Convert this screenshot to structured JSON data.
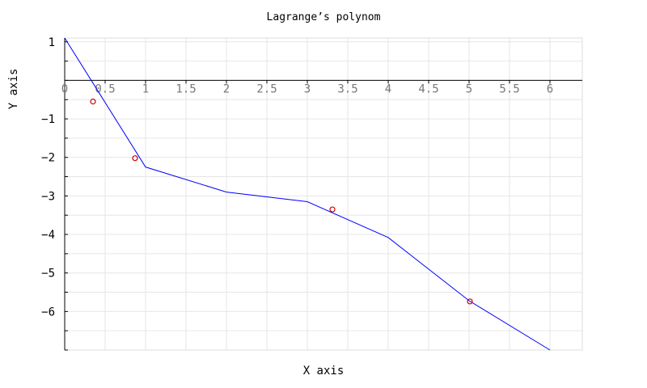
{
  "chart_data": {
    "type": "line",
    "title": "Lagrange’s polynom",
    "xlabel": "X axis",
    "ylabel": "Y axis",
    "xlim": [
      0,
      6.4
    ],
    "ylim": [
      -7,
      1.1
    ],
    "x_ticks": [
      0,
      0.5,
      1,
      1.5,
      2,
      2.5,
      3,
      3.5,
      4,
      4.5,
      5,
      5.5,
      6
    ],
    "x_tick_labels": [
      "0",
      "0.5",
      "1",
      "1.5",
      "2",
      "2.5",
      "3",
      "3.5",
      "4",
      "4.5",
      "5",
      "5.5",
      "6"
    ],
    "y_ticks": [
      1,
      -1,
      -2,
      -3,
      -4,
      -5,
      -6
    ],
    "y_tick_labels": [
      "1",
      "−1",
      "−2",
      "−3",
      "−4",
      "−5",
      "−6"
    ],
    "grid": true,
    "series": [
      {
        "kind": "line",
        "color": "#0000ff",
        "x": [
          0,
          1,
          2,
          3,
          4,
          5,
          6
        ],
        "y": [
          1.1,
          -2.25,
          -2.9,
          -3.15,
          -4.08,
          -5.72,
          -7.0
        ]
      },
      {
        "kind": "scatter",
        "marker": "circle-open",
        "color": "#cc0000",
        "x": [
          0.35,
          0.87,
          3.31,
          5.01
        ],
        "y": [
          -0.55,
          -2.02,
          -3.35,
          -5.74
        ]
      }
    ]
  }
}
